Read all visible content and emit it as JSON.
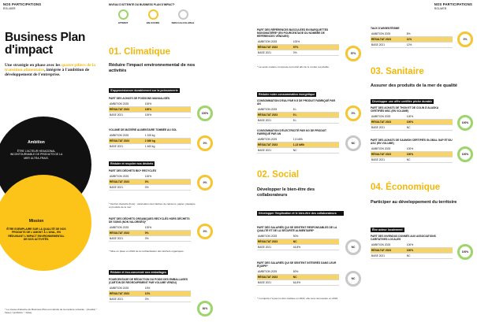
{
  "header": {
    "left": "NOS PARTICIPATIONS",
    "left_sub": "ROLMER",
    "right": "NOS PARTICIPATIONS",
    "right_sub": "ROLMER"
  },
  "intro": {
    "title": "Business Plan d'impact",
    "subtitle_prefix": "Une stratégie en phase avec les",
    "subtitle_highlight": "quatre piliers de la transition alimentaire",
    "subtitle_suffix": ", intégrée à l'ambition de développement de l'entreprise."
  },
  "ambition": {
    "title": "Ambition",
    "body": "ÊTRE L'ACTEUR HEXAGONAL INCONTOURNABLE DE PRODUITS DE LA MER ULTRA-FRAIS."
  },
  "mission": {
    "title": "Mission",
    "body": "ÊTRE EXEMPLAIRE SUR LA QUALITÉ DE NOS PRODUITS DE L'AMONT À L'AVAL, EN RÉDUISANT L'IMPACT ENVIRONNEMENTAL DE NOS ACTIVITÉS."
  },
  "footnote_left": "* Le niveau d'atteinte du Business Plan est calculé de la manière suivante : (résultat − base) / (ambition − base).",
  "legend": {
    "title": "NIVEAU D'ATTEINTE DU BUSINESS PLAN D'IMPACT*",
    "items": [
      {
        "label": "ATTEINT",
        "color": "#9dd46c"
      },
      {
        "label": "EN COURS",
        "color": "#f6c531"
      },
      {
        "label": "NON CALCULABLE",
        "color": "#c8c8c8"
      }
    ]
  },
  "climatique": {
    "heading": "01. Climatique",
    "sub": "Réduire l'impact environnemental de nos activités",
    "bar1": "S'approvisionner durablement sur la poissonnerie",
    "k1": {
      "title": "PART DES ACHATS DE POISSONS MANUALISÉS",
      "rows": [
        [
          "AMBITION 2025",
          "100%"
        ],
        [
          "RÉSULTAT 2023",
          "100%"
        ],
        [
          "BASE 2021",
          "100%"
        ]
      ],
      "pct": "100%"
    },
    "k2": {
      "title": "VOLUME DE MATIÈRE ALIMENTAIRE TOMBÉE AU SOL",
      "rows": [
        [
          "AMBITION 2025",
          "1 205 kg"
        ],
        [
          "RÉSULTAT 2023",
          "2 366 kg"
        ],
        [
          "BASE 2021",
          "1 463 kg"
        ]
      ],
      "pct": "0%"
    },
    "bar2": "Réduire et recycler nos déchets",
    "k3": {
      "title": "PART DES DÉCHETS BIO* RECYCLÉS",
      "rows": [
        [
          "AMBITION 2025",
          "100%"
        ],
        [
          "RÉSULTAT 2023",
          "0%"
        ],
        [
          "BASE 2021",
          "0%"
        ]
      ],
      "pct": "0%"
    },
    "note3": "* Déchet d'activité (bois) : valorisation des bâches de caissons, papier, plastique et produits de la mer.",
    "k4": {
      "title": "PART DES DÉCHETS ORGANIQUES RECYCLÉS HORS DÉCHETS DE SOINS (NON VALORISÉS)*",
      "rows": [
        [
          "AMBITION 2025",
          "100%"
        ],
        [
          "RÉSULTAT 2023",
          "0%"
        ],
        [
          "BASE 2021",
          "0%"
        ]
      ],
      "pct": "0%"
    },
    "note4": "* Mise en place en 2022 de la méthanisation des déchets organiques.",
    "bar3": "Réduire et éco-concevoir nos emballages",
    "k5": {
      "title": "POURCENTAGE DE RÉDUCTION DU POIDS DES EMBALLAGES (CARTON DE REGROUPEMENT PAR VOLUME VENDU)",
      "rows": [
        [
          "AMBITION 2025",
          "15%"
        ],
        [
          "RÉSULTAT 2023",
          "12%"
        ],
        [
          "BASE 2021",
          "0%"
        ]
      ],
      "pct": "81%"
    }
  },
  "col3": {
    "k1": {
      "title": "PART DES RÉFÉRENCES BASCULÉES EN BARQUETTES MONOMATIÈRE* (EN POURCENTAGE DU NOMBRE DE RÉFÉRENCES VENDUES)",
      "rows": [
        [
          "AMBITION 2025",
          "100%"
        ],
        [
          "RÉSULTAT 2023",
          "57%"
        ],
        [
          "BASE 2021",
          "0%"
        ]
      ],
      "pct": "57%"
    },
    "note1": "* La seule matière composée à produit afin de le rendre recyclable.",
    "bar1": "Réduire notre consommation énergétique",
    "k2": {
      "title": "CONSOMMATION D'EAU PAR KG DE PRODUIT FABRIQUÉ PAR AN",
      "rows": [
        [
          "AMBITION 2025",
          "8 L"
        ],
        [
          "RÉSULTAT 2023",
          "9 L"
        ],
        [
          "BASE 2021",
          "8 L"
        ]
      ],
      "pct": "0%"
    },
    "k3": {
      "title": "CONSOMMATION D'ÉLECTRICITÉ PAR KG DE PRODUIT FABRIQUÉ PAR AN",
      "rows": [
        [
          "AMBITION 2025",
          "1,5 kWh"
        ],
        [
          "RÉSULTAT 2023",
          "1,13 kWh"
        ],
        [
          "BASE 2021",
          "NC"
        ]
      ],
      "pct": "NC"
    },
    "heading": "02. Social",
    "sub": "Développer le bien-être des collaborateurs",
    "bar2": "Développer l'implication et le bien-être des collaborateurs",
    "k4": {
      "title": "PART DES SALARIÉS QUI SE SENTENT RESPONSABLES DE LA QUALITÉ ET DE LA SÉCURITÉ ALIMENTAIRE*",
      "rows": [
        [
          "AMBITION 2025",
          "50%"
        ],
        [
          "RÉSULTAT 2023",
          "NC"
        ],
        [
          "BASE 2021",
          "44,8%"
        ]
      ],
      "pct": "NC"
    },
    "k5": {
      "title": "PART DES SALARIÉS QUI SE SENTENT INTÉGRÉS DANS LEUR ÉQUIPE*",
      "rows": [
        [
          "AMBITION 2025",
          "50%"
        ],
        [
          "RÉSULTAT 2023",
          "NC"
        ],
        [
          "BASE 2021",
          "64,8%"
        ]
      ],
      "pct": "NC"
    },
    "note5": "* L'enquête n'a pas pu être réalisée en 2022, elle sera renouvelée en 2023."
  },
  "col4": {
    "k1": {
      "title": "TAUX D'ABSENTÉISME",
      "rows": [
        [
          "AMBITION 2025",
          "8%"
        ],
        [
          "RÉSULTAT 2023",
          "11%"
        ],
        [
          "BASE 2021",
          "12%"
        ]
      ],
      "pct": "0%"
    },
    "heading": "03. Sanitaire",
    "sub": "Assurer des produits de la mer de qualité",
    "bar1": "Développer une offre certifiée pêche durable",
    "k2": {
      "title": "PART DES ACHATS DE THON ET DE COLIN D'ALASKA CERTIFIÉS MSC (EN VOLUME)",
      "rows": [
        [
          "AMBITION 2025",
          "100%"
        ],
        [
          "RÉSULTAT 2023",
          "100%"
        ],
        [
          "BASE 2021",
          "NC"
        ]
      ],
      "pct": "100%"
    },
    "k3": {
      "title": "PART DES ACHATS DE SAUMON CERTIFIÉS GLOBAL GAP ET/OU ASC (EN VOLUME)",
      "rows": [
        [
          "AMBITION 2025",
          "100%"
        ],
        [
          "RÉSULTAT 2023",
          "100%"
        ],
        [
          "BASE 2021",
          "NC"
        ]
      ],
      "pct": "100%"
    },
    "heading2": "04. Économique",
    "sub2": "Participer au développement du territoire",
    "bar2": "Être acteur localement",
    "k4": {
      "title": "PART DES INVENDUS DONNÉS AUX ASSOCIATIONS CARITATIVES LOCALES",
      "rows": [
        [
          "AMBITION 2025",
          "100%"
        ],
        [
          "RÉSULTAT 2023",
          "100%"
        ],
        [
          "BASE 2021",
          "NC"
        ]
      ],
      "pct": "100%"
    }
  }
}
